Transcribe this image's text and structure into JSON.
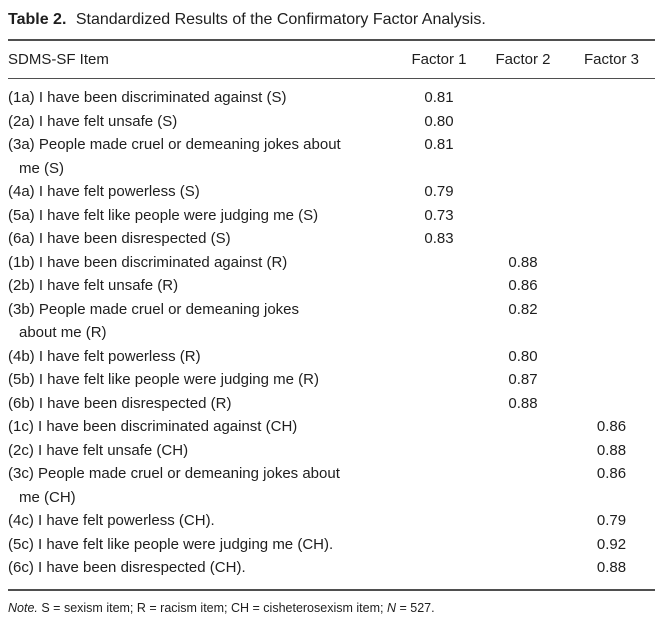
{
  "title": {
    "label": "Table 2.",
    "caption": "Standardized Results of the Confirmatory Factor Analysis."
  },
  "table": {
    "header": {
      "item": "SDMS-SF Item",
      "factor1": "Factor 1",
      "factor2": "Factor 2",
      "factor3": "Factor 3"
    },
    "rows": [
      {
        "item": "(1a) I have been discriminated against (S)",
        "factor1": "0.81",
        "factor2": "",
        "factor3": ""
      },
      {
        "item": "(2a) I have felt unsafe (S)",
        "factor1": "0.80",
        "factor2": "",
        "factor3": ""
      },
      {
        "item": "(3a) People made cruel or demeaning jokes about\nme (S)",
        "factor1": "0.81",
        "factor2": "",
        "factor3": ""
      },
      {
        "item": "(4a) I have felt powerless (S)",
        "factor1": "0.79",
        "factor2": "",
        "factor3": ""
      },
      {
        "item": "(5a) I have felt like people were judging me (S)",
        "factor1": "0.73",
        "factor2": "",
        "factor3": ""
      },
      {
        "item": "(6a) I have been disrespected (S)",
        "factor1": "0.83",
        "factor2": "",
        "factor3": ""
      },
      {
        "item": "(1b) I have been discriminated against (R)",
        "factor1": "",
        "factor2": "0.88",
        "factor3": ""
      },
      {
        "item": "(2b) I have felt unsafe (R)",
        "factor1": "",
        "factor2": "0.86",
        "factor3": ""
      },
      {
        "item": "(3b) People made cruel or demeaning jokes\nabout me (R)",
        "factor1": "",
        "factor2": "0.82",
        "factor3": ""
      },
      {
        "item": "(4b) I have felt powerless (R)",
        "factor1": "",
        "factor2": "0.80",
        "factor3": ""
      },
      {
        "item": "(5b) I have felt like people were judging me (R)",
        "factor1": "",
        "factor2": "0.87",
        "factor3": ""
      },
      {
        "item": "(6b) I have been disrespected (R)",
        "factor1": "",
        "factor2": "0.88",
        "factor3": ""
      },
      {
        "item": "(1c) I have been discriminated against (CH)",
        "factor1": "",
        "factor2": "",
        "factor3": "0.86"
      },
      {
        "item": "(2c) I have felt unsafe (CH)",
        "factor1": "",
        "factor2": "",
        "factor3": "0.88"
      },
      {
        "item": "(3c) People made cruel or demeaning jokes about\nme (CH)",
        "factor1": "",
        "factor2": "",
        "factor3": "0.86"
      },
      {
        "item": "(4c) I have felt powerless (CH).",
        "factor1": "",
        "factor2": "",
        "factor3": "0.79"
      },
      {
        "item": "(5c) I have felt like people were judging me (CH).",
        "factor1": "",
        "factor2": "",
        "factor3": "0.92"
      },
      {
        "item": "(6c) I have been disrespected (CH).",
        "factor1": "",
        "factor2": "",
        "factor3": "0.88"
      }
    ]
  },
  "note": {
    "label": "Note.",
    "body": "S = sexism item; R = racism item; CH = cisheterosexism item;",
    "n_symbol": "N",
    "n_value": "= 527."
  },
  "colors": {
    "text": "#1e1e1e",
    "rule": "#4f4f4f",
    "background": "#ffffff"
  }
}
